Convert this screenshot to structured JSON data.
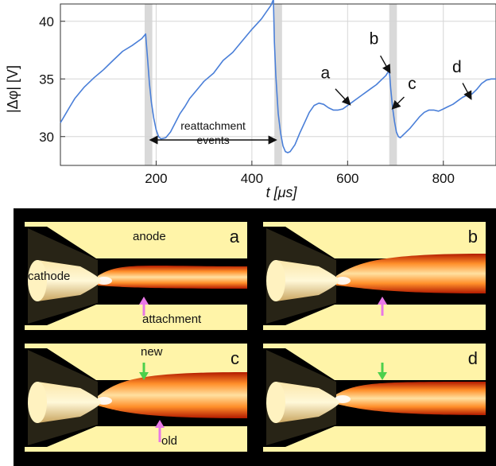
{
  "chart_data": {
    "type": "line",
    "xlabel": "t [μs]",
    "ylabel": "|Δφ| [V]",
    "xlim": [
      0,
      910
    ],
    "ylim": [
      27.5,
      41.5
    ],
    "xticks": [
      200,
      400,
      600,
      800
    ],
    "yticks": [
      30,
      35,
      40
    ],
    "grid": true,
    "series_color": "#4a7fd8",
    "shaded_color": "#d9d9d9",
    "shaded_intervals": [
      [
        176,
        192
      ],
      [
        447,
        463
      ],
      [
        687,
        703
      ]
    ],
    "series": [
      {
        "x": [
          0,
          10,
          20,
          30,
          50,
          70,
          90,
          110,
          130,
          150,
          170,
          178,
          182,
          186,
          190,
          195,
          200,
          205,
          210,
          220,
          230,
          240,
          250,
          260,
          270,
          280,
          300,
          320,
          340,
          360,
          380,
          400,
          420,
          430,
          440,
          445,
          447,
          450,
          455,
          460,
          465,
          470,
          475,
          480,
          490,
          500,
          510,
          520,
          530,
          540,
          550,
          560,
          570,
          580,
          590,
          600,
          610,
          620,
          630,
          640,
          650,
          660,
          670,
          680,
          686,
          688,
          690,
          694,
          698,
          702,
          706,
          710,
          720,
          730,
          740,
          750,
          760,
          770,
          780,
          790,
          800,
          810,
          820,
          830,
          840,
          850,
          860,
          870,
          880,
          890,
          900,
          910
        ],
        "y": [
          31.2,
          31.9,
          32.6,
          33.3,
          34.3,
          35.1,
          35.8,
          36.6,
          37.4,
          37.9,
          38.5,
          38.9,
          36.8,
          34.6,
          33.0,
          31.6,
          30.6,
          30.0,
          29.8,
          29.9,
          30.4,
          31.2,
          32.0,
          32.6,
          33.3,
          33.8,
          34.8,
          35.5,
          36.6,
          37.3,
          38.3,
          39.3,
          40.2,
          40.8,
          41.4,
          41.9,
          38.2,
          35.3,
          32.0,
          30.3,
          29.2,
          28.7,
          28.6,
          28.7,
          29.3,
          30.3,
          31.2,
          32.1,
          32.7,
          32.9,
          32.8,
          32.5,
          32.3,
          32.3,
          32.4,
          32.7,
          33.0,
          33.3,
          33.6,
          33.9,
          34.2,
          34.5,
          34.9,
          35.3,
          35.7,
          35.3,
          34.2,
          32.5,
          31.3,
          30.4,
          30.0,
          29.9,
          30.3,
          30.7,
          31.2,
          31.7,
          32.1,
          32.3,
          32.3,
          32.2,
          32.4,
          32.6,
          32.8,
          33.1,
          33.4,
          33.6,
          33.7,
          34.1,
          34.6,
          34.9,
          35.0,
          35.0
        ]
      }
    ],
    "annotations": [
      {
        "text": "a",
        "x": 600,
        "y": 33.0
      },
      {
        "text": "b",
        "x": 685,
        "y": 35.8
      },
      {
        "text": "c",
        "x": 698,
        "y": 32.6
      },
      {
        "text": "d",
        "x": 855,
        "y": 33.5
      }
    ],
    "events_label": [
      "reattachment",
      "events"
    ]
  },
  "panels": [
    {
      "letter": "a",
      "labels": [
        "anode",
        "cathode",
        "attachment"
      ]
    },
    {
      "letter": "b",
      "labels": []
    },
    {
      "letter": "c",
      "labels": [
        "new",
        "old"
      ]
    },
    {
      "letter": "d",
      "labels": []
    }
  ],
  "colors": {
    "anode": "#fff4a8",
    "plasma": "#ffd27a",
    "arrow_pink": "#e878e6",
    "arrow_green": "#4cd04c"
  }
}
